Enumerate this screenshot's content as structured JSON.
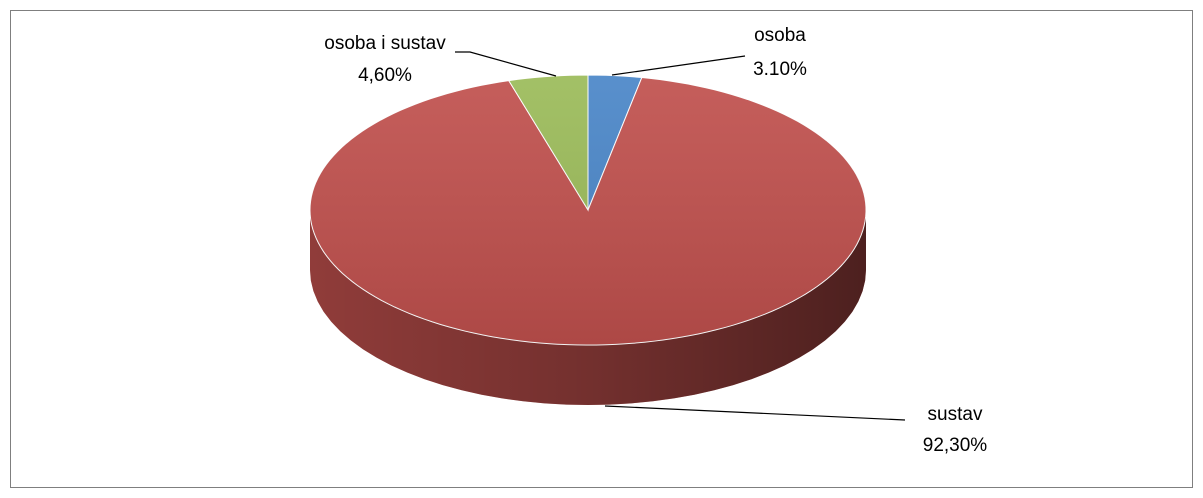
{
  "chart_data": {
    "type": "pie",
    "categories": [
      "osoba",
      "sustav",
      "osoba i sustav"
    ],
    "values": [
      3.1,
      92.3,
      4.6
    ],
    "value_labels": [
      "3.10%",
      "92,30%",
      "4,60%"
    ],
    "colors": [
      "#4a86c8",
      "#c0504d",
      "#9bbb59"
    ]
  }
}
